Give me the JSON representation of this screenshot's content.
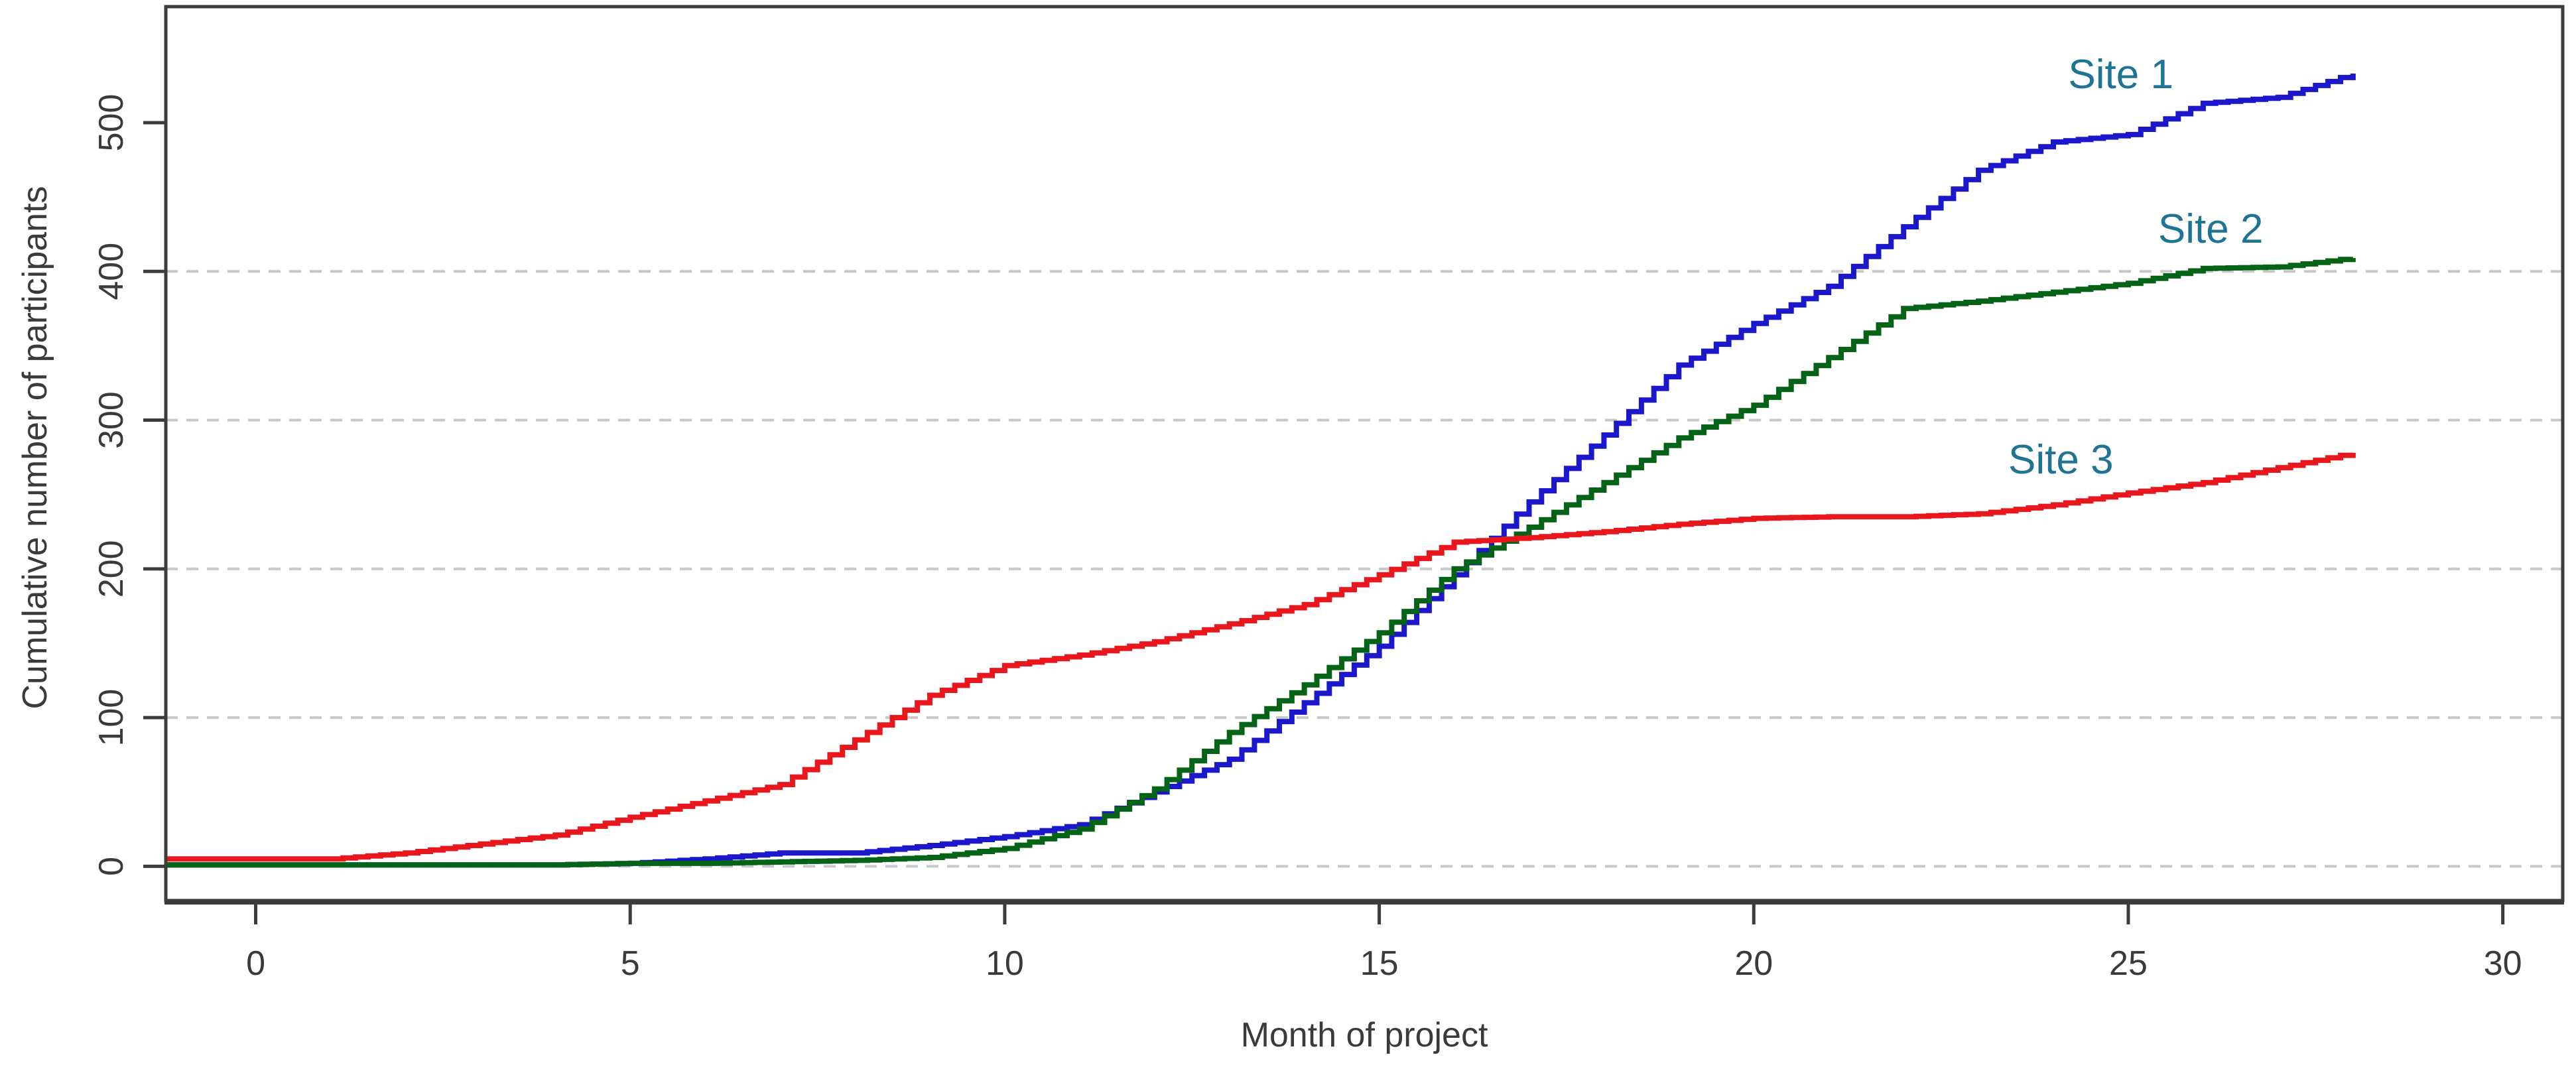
{
  "page": {
    "background": "#ffffff",
    "description": "Line chart of cumulative participant recruitment over project months for three sites"
  },
  "chart_data": {
    "type": "line",
    "title": "",
    "xlabel": "Month of project",
    "ylabel": "Cumulative number of participants",
    "xlim": [
      -1.2,
      30.8
    ],
    "ylim": [
      -23,
      578
    ],
    "x_ticks": [
      0,
      5,
      10,
      15,
      20,
      25,
      30
    ],
    "x_tick_labels": [
      "0",
      "5",
      "10",
      "15",
      "20",
      "25",
      "30"
    ],
    "y_ticks": [
      0,
      100,
      200,
      300,
      400,
      500
    ],
    "y_tick_labels": [
      "0",
      "100",
      "200",
      "300",
      "400",
      "500"
    ],
    "gridlines_y": [
      0,
      100,
      200,
      300,
      400
    ],
    "grid": "horizontal dashed light-gray lines at 0,100,200,300,400",
    "legend_position": "inline text labels near line ends",
    "x": [
      -1.2,
      0,
      1,
      2,
      3,
      4,
      5,
      6,
      7,
      8,
      9,
      10,
      11,
      12,
      13,
      14,
      15,
      16,
      17,
      18,
      19,
      20,
      21,
      22,
      23,
      24,
      25,
      26,
      27,
      28
    ],
    "series": [
      {
        "name": "Site 1",
        "color": "#1b17cb",
        "values": [
          1,
          1,
          1,
          1,
          1,
          1,
          2,
          5,
          9,
          9,
          14,
          20,
          28,
          50,
          72,
          110,
          148,
          196,
          245,
          290,
          337,
          365,
          390,
          430,
          468,
          487,
          492,
          513,
          517,
          533
        ]
      },
      {
        "name": "Site 2",
        "color": "#046317",
        "values": [
          1,
          1,
          1,
          1,
          1,
          1,
          2,
          2,
          3,
          4,
          6,
          12,
          25,
          52,
          90,
          122,
          157,
          200,
          228,
          258,
          288,
          310,
          342,
          375,
          380,
          386,
          392,
          402,
          403,
          409
        ]
      },
      {
        "name": "Site 3",
        "color": "#e8171e",
        "values": [
          5,
          5,
          5,
          9,
          15,
          21,
          33,
          44,
          55,
          85,
          115,
          135,
          142,
          151,
          163,
          176,
          196,
          218,
          221,
          225,
          230,
          234,
          235,
          235,
          237,
          243,
          251,
          258,
          268,
          278
        ]
      }
    ],
    "labels": [
      {
        "text": "Site 1",
        "x": 24.9,
        "y": 533,
        "color": "#1f7395"
      },
      {
        "text": "Site 2",
        "x": 26.1,
        "y": 429,
        "color": "#1f7395"
      },
      {
        "text": "Site 3",
        "x": 24.1,
        "y": 274,
        "color": "#1f7395"
      }
    ],
    "style": {
      "grid_color": "#c8c8c8",
      "axis_color": "#3c3c3c",
      "tick_label_color": "#3a3a3a",
      "annotation_color": "#1f7395",
      "background": "#ffffff",
      "line_width": 8
    }
  }
}
